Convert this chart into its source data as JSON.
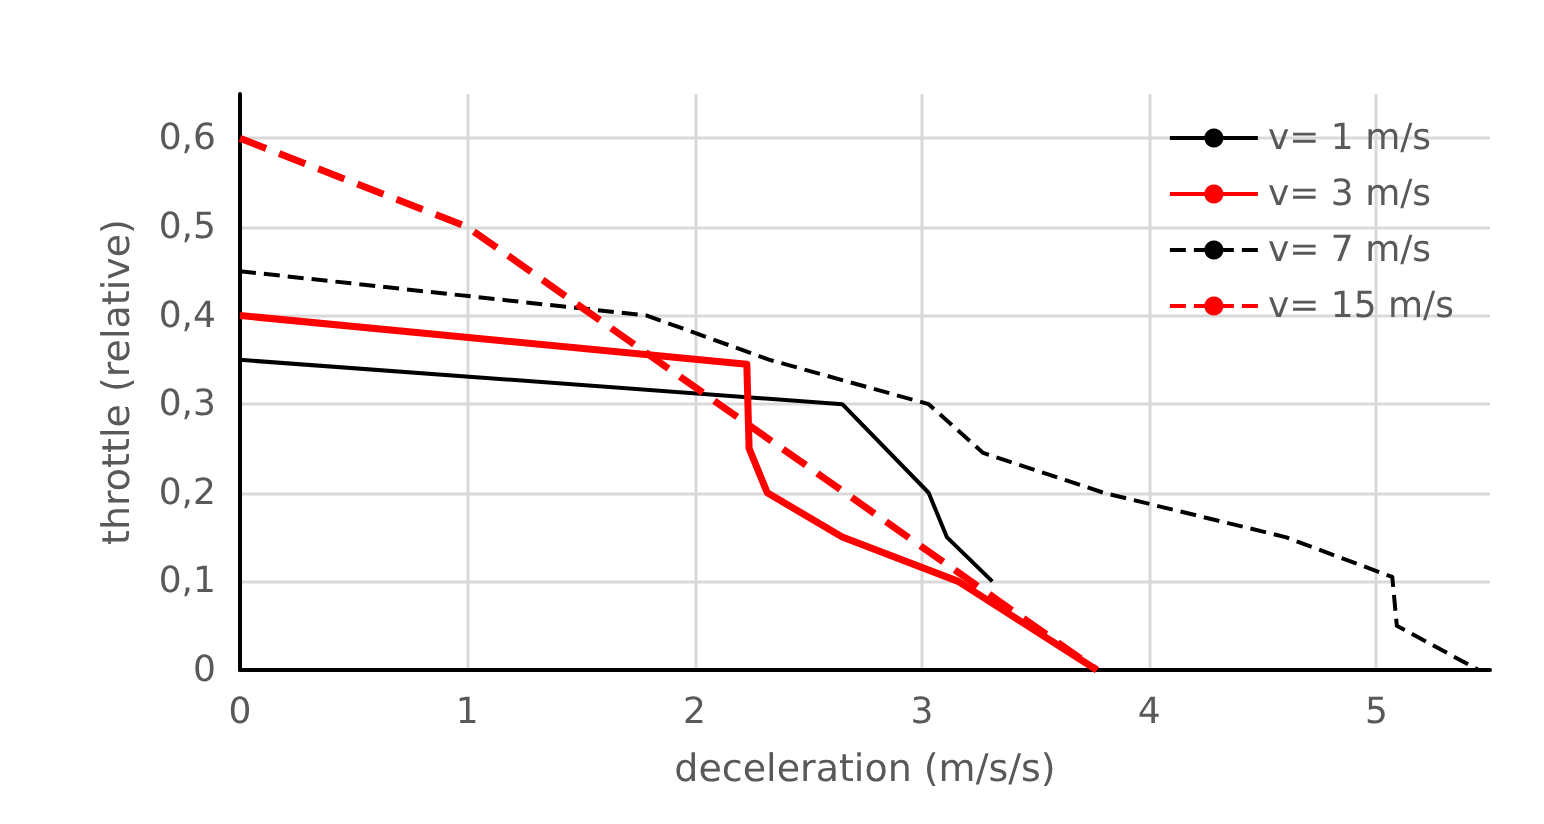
{
  "chart_data": {
    "type": "line",
    "xlabel": "deceleration (m/s/s)",
    "ylabel": "throttle (relative)",
    "xlim": [
      0,
      5.5
    ],
    "xticks": [
      0,
      1,
      2,
      3,
      4,
      5
    ],
    "ylim": [
      0,
      0.65
    ],
    "yticks": [
      {
        "value": 0,
        "label": "0"
      },
      {
        "value": 0.1,
        "label": "0,1"
      },
      {
        "value": 0.2,
        "label": "0,2"
      },
      {
        "value": 0.3,
        "label": "0,3"
      },
      {
        "value": 0.4,
        "label": "0,4"
      },
      {
        "value": 0.5,
        "label": "0,5"
      },
      {
        "value": 0.6,
        "label": "0,6"
      }
    ],
    "grid": true,
    "legend": "top right",
    "marker": "none",
    "series": [
      {
        "name": "v= 1 m/s",
        "color": "#000000",
        "line_style": "solid",
        "x": [
          0,
          2.65,
          3.03,
          3.11,
          3.31
        ],
        "values": [
          0.35,
          0.3,
          0.2,
          0.15,
          0.1
        ]
      },
      {
        "name": "v= 3 m/s",
        "color": "#ff0000",
        "line_style": "solid",
        "x": [
          0,
          2.23,
          2.24,
          2.32,
          2.65,
          3.16,
          3.77
        ],
        "values": [
          0.4,
          0.345,
          0.25,
          0.2,
          0.15,
          0.1,
          0
        ]
      },
      {
        "name": "v= 7 m/s",
        "color": "#000000",
        "line_style": "dashed",
        "x": [
          0,
          1.79,
          2.33,
          3.03,
          3.27,
          3.8,
          4.6,
          5.07,
          5.09,
          5.45
        ],
        "values": [
          0.45,
          0.4,
          0.35,
          0.3,
          0.245,
          0.2,
          0.15,
          0.105,
          0.05,
          0
        ]
      },
      {
        "name": "v= 15 m/s",
        "color": "#ff0000",
        "line_style": "dashed",
        "x": [
          0,
          1,
          3.77
        ],
        "values": [
          0.6,
          0.5,
          0
        ]
      }
    ]
  }
}
